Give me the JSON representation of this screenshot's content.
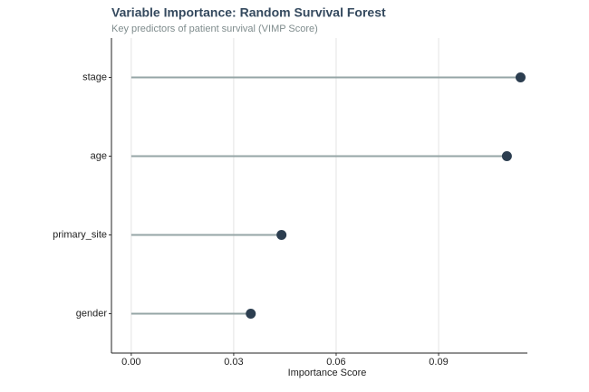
{
  "chart_data": {
    "type": "lollipop",
    "title": "Variable Importance: Random Survival Forest",
    "subtitle": "Key predictors of patient survival (VIMP Score)",
    "x_label": "Importance Score",
    "categories": [
      "stage",
      "age",
      "primary_site",
      "gender"
    ],
    "values": [
      0.114,
      0.11,
      0.044,
      0.035
    ],
    "color": "#2c3e50",
    "stem_color": "#95a5a6",
    "xlim": [
      -0.0058,
      0.116
    ],
    "xticks": [
      {
        "value": 0,
        "label": "0.00"
      },
      {
        "value": 0.03,
        "label": "0.03"
      },
      {
        "value": 0.06,
        "label": "0.06"
      },
      {
        "value": 0.09,
        "label": "0.09"
      }
    ],
    "grid": true
  }
}
